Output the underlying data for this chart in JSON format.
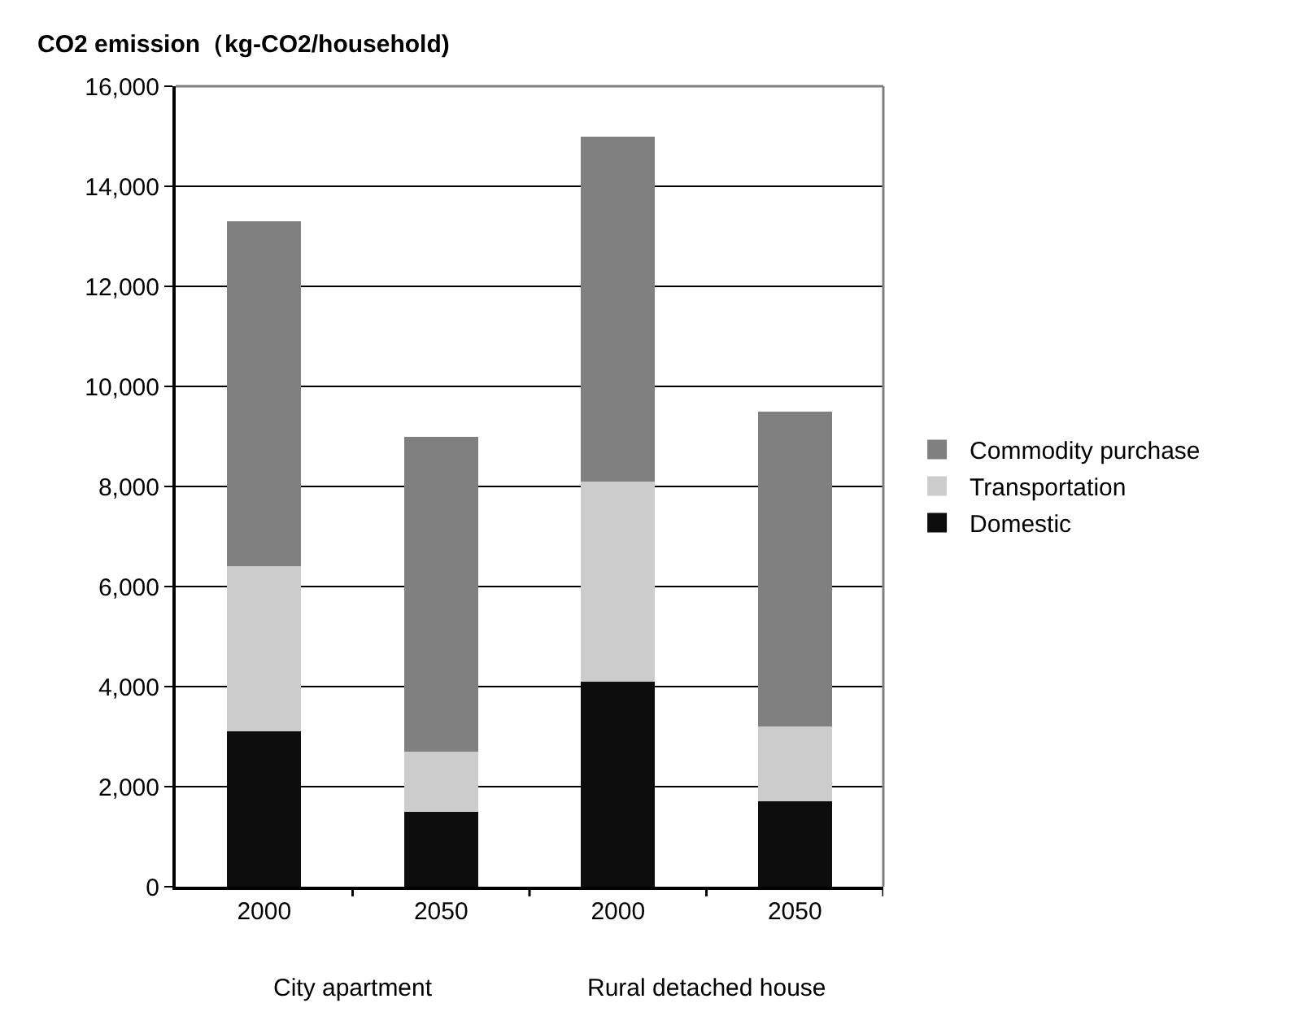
{
  "chart_data": {
    "type": "bar",
    "stacked": true,
    "ylabel": "CO2 emission（kg-CO2/household)",
    "categories": [
      "2000",
      "2050",
      "2000",
      "2050"
    ],
    "series": [
      {
        "name": "Domestic",
        "color": "#0d0d0d",
        "values": [
          3100,
          1500,
          4100,
          1700
        ]
      },
      {
        "name": "Transportation",
        "color": "#cccccc",
        "values": [
          3300,
          1200,
          4000,
          1500
        ]
      },
      {
        "name": "Commodity purchase",
        "color": "#808080",
        "values": [
          6900,
          6300,
          6900,
          6300
        ]
      }
    ],
    "ylim": [
      0,
      16000
    ],
    "yticks": [
      0,
      {
        "value": 2000,
        "label": "2,000"
      },
      {
        "value": 4000,
        "label": "4,000"
      },
      {
        "value": 6000,
        "label": "6,000"
      },
      {
        "value": 8000,
        "label": "8,000"
      },
      {
        "value": 10000,
        "label": "10,000"
      },
      {
        "value": 12000,
        "label": "12,000"
      },
      {
        "value": 14000,
        "label": "14,000"
      },
      {
        "value": 16000,
        "label": "16,000"
      }
    ],
    "grid": "y",
    "legend": "right",
    "annotations": [
      "City apartment",
      "Rural detached house"
    ]
  }
}
